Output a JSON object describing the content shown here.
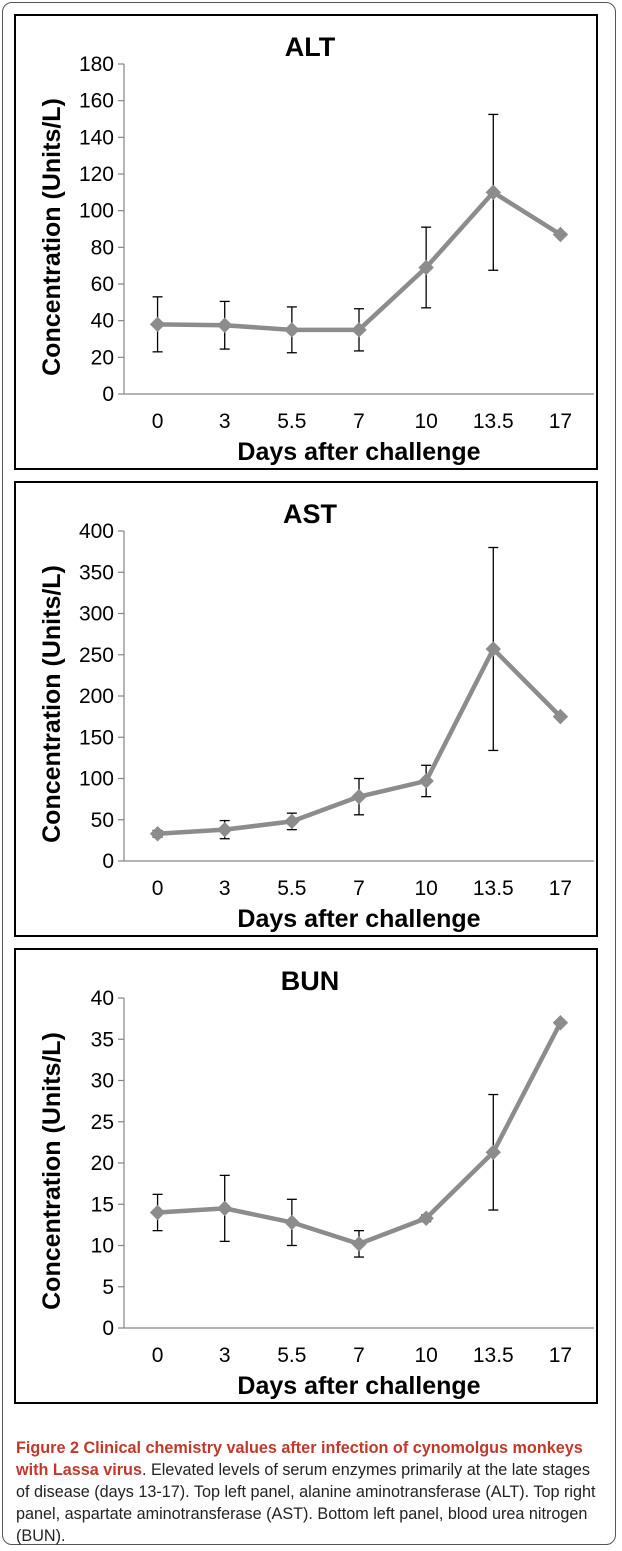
{
  "chart_data": [
    {
      "type": "line",
      "title": "ALT",
      "xlabel": "Days after challenge",
      "ylabel": "Concentration (Units/L)",
      "categories": [
        "0",
        "3",
        "5.5",
        "7",
        "10",
        "13.5",
        "17"
      ],
      "yticks": [
        "0",
        "20",
        "40",
        "60",
        "80",
        "100",
        "120",
        "140",
        "160",
        "180"
      ],
      "ylim": [
        0,
        180
      ],
      "values": [
        38,
        37.5,
        35,
        35,
        69,
        110,
        87
      ],
      "error": [
        15,
        13,
        12.5,
        11.5,
        22,
        42.5,
        null
      ],
      "color": "#8c8c8c"
    },
    {
      "type": "line",
      "title": "AST",
      "xlabel": "Days after challenge",
      "ylabel": "Concentration (Units/L)",
      "categories": [
        "0",
        "3",
        "5.5",
        "7",
        "10",
        "13.5",
        "17"
      ],
      "yticks": [
        "0",
        "50",
        "100",
        "150",
        "200",
        "250",
        "300",
        "350",
        "400"
      ],
      "ylim": [
        0,
        400
      ],
      "values": [
        33,
        38,
        48,
        78,
        97,
        257,
        175
      ],
      "error": [
        4,
        11,
        10,
        22,
        19,
        123,
        null
      ],
      "color": "#8c8c8c"
    },
    {
      "type": "line",
      "title": "BUN",
      "xlabel": "Days after challenge",
      "ylabel": "Concentration (Units/L)",
      "categories": [
        "0",
        "3",
        "5.5",
        "7",
        "10",
        "13.5",
        "17"
      ],
      "yticks": [
        "0",
        "5",
        "10",
        "15",
        "20",
        "25",
        "30",
        "35",
        "40"
      ],
      "ylim": [
        0,
        40
      ],
      "values": [
        14,
        14.5,
        12.8,
        10.2,
        13.3,
        21.3,
        37
      ],
      "error": [
        2.2,
        4,
        2.8,
        1.6,
        0.4,
        7,
        null
      ],
      "color": "#8c8c8c"
    }
  ],
  "caption": {
    "title": "Figure 2 Clinical chemistry values after infection of cynomolgus monkeys with Lassa virus",
    "body": ". Elevated levels of serum enzymes primarily at the late stages of disease (days 13-17). Top left panel, alanine aminotransferase (ALT). Top right panel, aspartate aminotransferase (AST). Bottom left panel, blood urea nitrogen (BUN)."
  }
}
